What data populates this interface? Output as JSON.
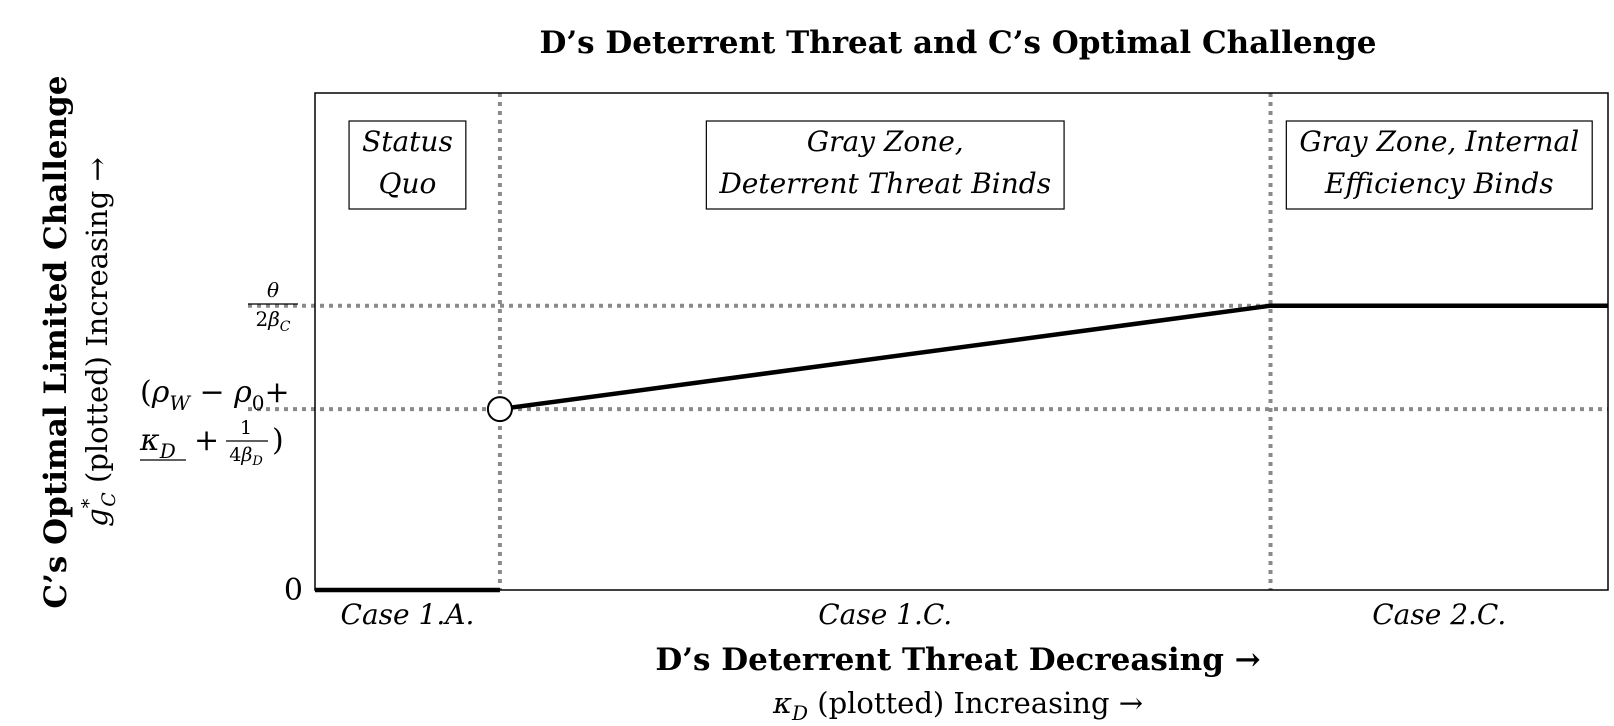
{
  "chart_data": {
    "type": "line",
    "title": "D’s Deterrent Threat and C’s Optimal Challenge",
    "xlabel": "D’s Deterrent Threat Decreasing →",
    "xlabel_sub": "κD (plotted) Increasing →",
    "ylabel": "C’s Optimal Limited Challenge",
    "ylabel_sub": "g*C (plotted) Increasing →",
    "grid": false,
    "cases": [
      "Case 1.A.",
      "Case 1.C.",
      "Case 2.C."
    ],
    "regions": [
      {
        "line1": "Status",
        "line2": "Quo"
      },
      {
        "line1": "Gray Zone,",
        "line2": "Deterrent Threat Binds"
      },
      {
        "line1": "Gray Zone, Internal",
        "line2": "Efficiency Binds"
      }
    ],
    "y_ticks": {
      "zero": "0",
      "upper": "θ / 2βC",
      "lower": "(ρW − ρ0 + κD + 1/4βD)"
    },
    "x_range": [
      0,
      1
    ],
    "y_range": [
      0,
      1
    ],
    "breakpoints_x": [
      0.143,
      0.739
    ],
    "levels_y": {
      "lower": 0.364,
      "upper": 0.572
    },
    "series": [
      {
        "points": [
          [
            0,
            0
          ],
          [
            0.143,
            0
          ]
        ]
      },
      {
        "points": [
          [
            0.143,
            0.364
          ],
          [
            0.739,
            0.572
          ],
          [
            1,
            0.572
          ]
        ]
      }
    ],
    "open_marker": [
      0.143,
      0.364
    ]
  }
}
